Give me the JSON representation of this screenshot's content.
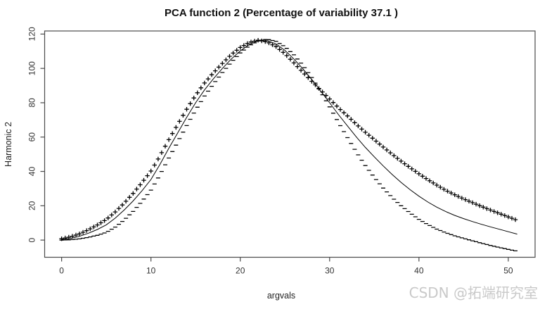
{
  "watermark": {
    "text": "CSDN @拓端研究室",
    "color": "#c9c9c9"
  },
  "chart_data": {
    "type": "line",
    "title": "PCA function 2 (Percentage of variability 37.1 )",
    "xlabel": "argvals",
    "ylabel": "Harmonic 2",
    "x_ticks": [
      0,
      10,
      20,
      30,
      40,
      50
    ],
    "y_ticks": [
      0,
      20,
      40,
      60,
      80,
      100,
      120
    ],
    "xlim": [
      -1.9,
      53.0
    ],
    "ylim": [
      -10.0,
      121.8
    ],
    "grid": false,
    "legend_position": "none",
    "marker_step": 0.4,
    "x": [
      0,
      1,
      2,
      3,
      4,
      5,
      6,
      7,
      8,
      9,
      10,
      11,
      12,
      13,
      14,
      15,
      16,
      17,
      18,
      19,
      20,
      21,
      22,
      23,
      24,
      25,
      26,
      27,
      28,
      29,
      30,
      31,
      32,
      33,
      34,
      35,
      36,
      37,
      38,
      39,
      40,
      41,
      42,
      43,
      44,
      45,
      46,
      47,
      48,
      49,
      50,
      51
    ],
    "series": [
      {
        "name": "mean-harmonic",
        "label": "mean curve (solid line)",
        "style": "solid-line",
        "marker": "",
        "color": "#000000",
        "values": [
          0.3,
          1.0,
          2.2,
          4.0,
          6.2,
          8.9,
          12.8,
          17.5,
          22.8,
          28.8,
          35.3,
          44.0,
          53.5,
          62.5,
          71.5,
          80.0,
          87.5,
          94.0,
          100.0,
          105.5,
          110.2,
          113.8,
          116.0,
          116.2,
          114.2,
          110.5,
          105.5,
          99.8,
          93.5,
          86.8,
          80.0,
          73.0,
          66.5,
          60.0,
          54.0,
          48.5,
          43.2,
          38.2,
          33.6,
          29.4,
          25.6,
          22.2,
          19.2,
          16.6,
          14.4,
          12.5,
          10.8,
          9.2,
          7.7,
          6.3,
          4.9,
          3.5
        ]
      },
      {
        "name": "plus-perturbation",
        "label": "mean + harmonic (plus markers)",
        "style": "plus-markers",
        "marker": "+",
        "color": "#000000",
        "values": [
          0.8,
          1.9,
          3.6,
          6.0,
          8.8,
          12.0,
          16.4,
          21.5,
          27.2,
          33.5,
          40.2,
          49.0,
          58.5,
          67.4,
          76.2,
          84.4,
          91.5,
          97.5,
          102.9,
          108.1,
          112.2,
          115.1,
          116.4,
          115.4,
          112.7,
          108.5,
          103.2,
          97.8,
          92.5,
          87.3,
          82.2,
          77.0,
          72.3,
          67.4,
          62.8,
          58.5,
          54.2,
          50.0,
          46.0,
          42.2,
          38.6,
          35.2,
          32.0,
          29.0,
          26.4,
          24.0,
          21.8,
          19.6,
          17.5,
          15.5,
          13.5,
          11.5
        ]
      },
      {
        "name": "minus-perturbation",
        "label": "mean - harmonic (minus markers)",
        "style": "dash-markers",
        "marker": "-",
        "color": "#000000",
        "values": [
          0.0,
          0.2,
          0.7,
          1.6,
          2.8,
          4.5,
          7.6,
          11.7,
          16.7,
          22.6,
          29.1,
          38.0,
          47.8,
          57.2,
          66.7,
          75.8,
          83.9,
          91.0,
          97.6,
          103.7,
          109.0,
          113.2,
          116.0,
          117.0,
          115.8,
          112.6,
          107.9,
          101.9,
          94.7,
          86.4,
          77.6,
          68.4,
          59.7,
          51.2,
          43.4,
          36.5,
          30.3,
          24.8,
          20.0,
          15.8,
          12.1,
          9.0,
          6.4,
          4.3,
          2.5,
          1.0,
          -0.4,
          -1.8,
          -3.1,
          -4.3,
          -5.4,
          -6.5
        ]
      }
    ]
  }
}
